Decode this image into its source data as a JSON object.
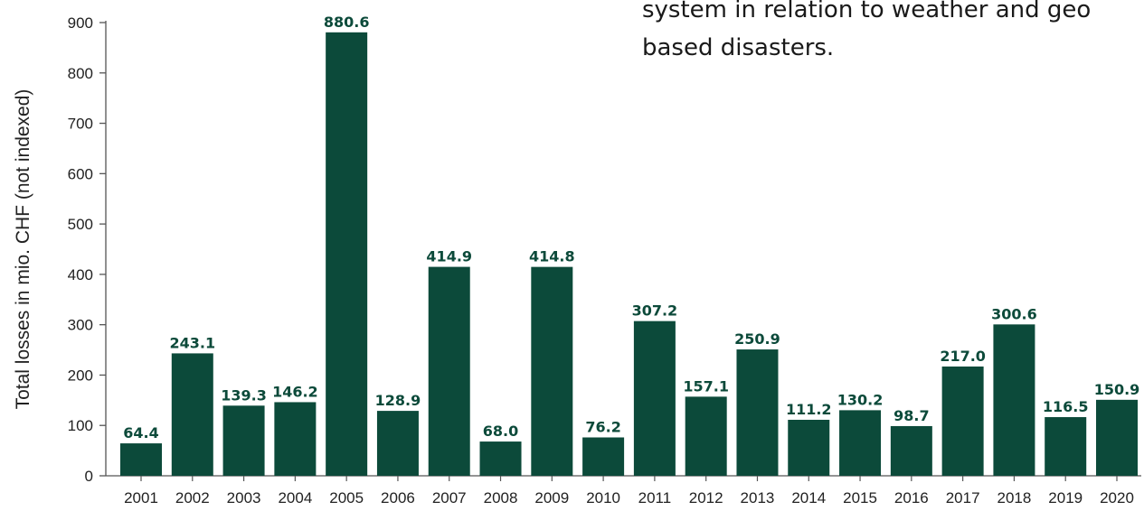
{
  "side_text": {
    "line1": "system in relation to weather and geo",
    "line2": "based disasters."
  },
  "chart_data": {
    "type": "bar",
    "categories": [
      "2001",
      "2002",
      "2003",
      "2004",
      "2005",
      "2006",
      "2007",
      "2008",
      "2009",
      "2010",
      "2011",
      "2012",
      "2013",
      "2014",
      "2015",
      "2016",
      "2017",
      "2018",
      "2019",
      "2020"
    ],
    "values": [
      64.4,
      243.1,
      139.3,
      146.2,
      880.6,
      128.9,
      414.9,
      68.0,
      414.8,
      76.2,
      307.2,
      157.1,
      250.9,
      111.2,
      130.2,
      98.7,
      217.0,
      300.6,
      116.5,
      150.9
    ],
    "value_labels": [
      "64.4",
      "243.1",
      "139.3",
      "146.2",
      "880.6",
      "128.9",
      "414.9",
      "68.0",
      "414.8",
      "76.2",
      "307.2",
      "157.1",
      "250.9",
      "111.2",
      "130.2",
      "98.7",
      "217.0",
      "300.6",
      "116.5",
      "150.9"
    ],
    "ylabel": "Total losses in mio. CHF (not indexed)",
    "ylim": [
      0,
      900
    ],
    "yticks": [
      0,
      100,
      200,
      300,
      400,
      500,
      600,
      700,
      800,
      900
    ],
    "grid": false,
    "colors": {
      "bar": "#0c4a3a",
      "label": "#0c4a3a",
      "axis": "#555555"
    }
  }
}
